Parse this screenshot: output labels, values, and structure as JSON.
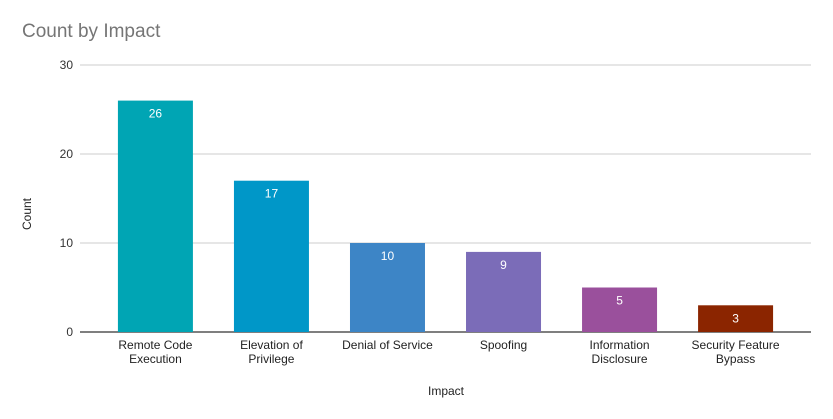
{
  "chart_data": {
    "type": "bar",
    "title": "Count by Impact",
    "xlabel": "Impact",
    "ylabel": "Count",
    "ylim": [
      0,
      30
    ],
    "yticks": [
      0,
      10,
      20,
      30
    ],
    "grid": true,
    "legend": "none",
    "categories": [
      [
        "Remote Code",
        "Execution"
      ],
      [
        "Elevation of",
        "Privilege"
      ],
      [
        "Denial of Service"
      ],
      [
        "Spoofing"
      ],
      [
        "Information",
        "Disclosure"
      ],
      [
        "Security Feature",
        "Bypass"
      ]
    ],
    "values": [
      26,
      17,
      10,
      9,
      5,
      3
    ],
    "colors": [
      "#00a5b4",
      "#0097c8",
      "#3d85c6",
      "#7b6cb8",
      "#9a509c",
      "#8b2500"
    ]
  }
}
